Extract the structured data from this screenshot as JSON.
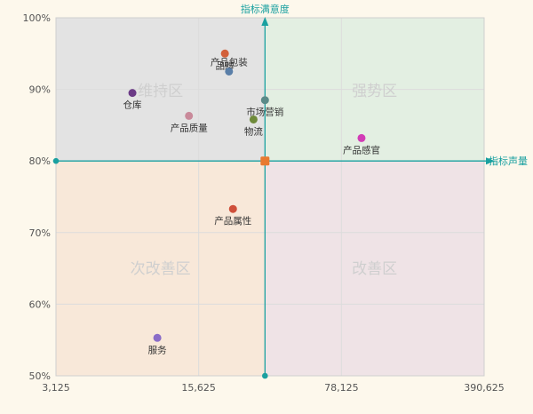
{
  "chart_data": {
    "type": "scatter",
    "x_axis": {
      "scale": "log",
      "range": [
        3125,
        390625
      ],
      "ticks": [
        3125,
        15625,
        78125,
        390625
      ],
      "tick_labels": [
        "3,125",
        "15,625",
        "78,125",
        "390,625"
      ],
      "title": "指标声量"
    },
    "y_axis": {
      "range": [
        50,
        100
      ],
      "ticks": [
        50,
        60,
        70,
        80,
        90,
        100
      ],
      "tick_labels": [
        "50%",
        "60%",
        "70%",
        "80%",
        "90%",
        "100%"
      ],
      "title": "指标满意度"
    },
    "grid": true,
    "crosshair": {
      "x": 33000,
      "y": 80
    },
    "quadrants": [
      {
        "label": "维持区",
        "position": "top-left",
        "color": "#e3e3e3"
      },
      {
        "label": "强势区",
        "position": "top-right",
        "color": "#e3efe2"
      },
      {
        "label": "次改善区",
        "position": "bottom-left",
        "color": "#f8e8d9"
      },
      {
        "label": "改善区",
        "position": "bottom-right",
        "color": "#efe3e6"
      }
    ],
    "points": [
      {
        "name": "品牌",
        "x": 21000,
        "y": 95,
        "color": "#d2603a",
        "label_pos": "below"
      },
      {
        "name": "产品包装",
        "x": 22000,
        "y": 92.5,
        "color": "#5a7fa8",
        "label_pos": "above"
      },
      {
        "name": "仓库",
        "x": 7400,
        "y": 89.5,
        "color": "#6b3a86",
        "label_pos": "below"
      },
      {
        "name": "产品质量",
        "x": 14000,
        "y": 86.3,
        "color": "#c98a9a",
        "label_pos": "below"
      },
      {
        "name": "市场营销",
        "x": 33000,
        "y": 88.5,
        "color": "#5a8a88",
        "label_pos": "below"
      },
      {
        "name": "物流",
        "x": 29000,
        "y": 85.8,
        "color": "#6f8a3a",
        "label_pos": "below"
      },
      {
        "name": "产品感官",
        "x": 98000,
        "y": 83.2,
        "color": "#d23cb6",
        "label_pos": "below"
      },
      {
        "name": "产品属性",
        "x": 23000,
        "y": 73.3,
        "color": "#cf4f3a",
        "label_pos": "below"
      },
      {
        "name": "服务",
        "x": 9800,
        "y": 55.3,
        "color": "#8a6cc8",
        "label_pos": "below"
      }
    ],
    "center_marker_color": "#e87a30",
    "axis_color": "#1aa0a0"
  }
}
